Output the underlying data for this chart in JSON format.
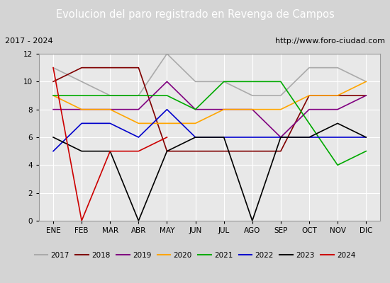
{
  "title": "Evolucion del paro registrado en Revenga de Campos",
  "subtitle_left": "2017 - 2024",
  "subtitle_right": "http://www.foro-ciudad.com",
  "months": [
    "ENE",
    "FEB",
    "MAR",
    "ABR",
    "MAY",
    "JUN",
    "JUL",
    "AGO",
    "SEP",
    "OCT",
    "NOV",
    "DIC"
  ],
  "series": {
    "2017": {
      "color": "#aaaaaa",
      "values": [
        11,
        10,
        9,
        9,
        12,
        10,
        10,
        9,
        9,
        11,
        11,
        10
      ]
    },
    "2018": {
      "color": "#800000",
      "values": [
        10,
        11,
        11,
        11,
        5,
        5,
        5,
        5,
        5,
        9,
        9,
        9
      ]
    },
    "2019": {
      "color": "#800080",
      "values": [
        8,
        8,
        8,
        8,
        10,
        8,
        8,
        8,
        6,
        8,
        8,
        9
      ]
    },
    "2020": {
      "color": "#ffa500",
      "values": [
        9,
        8,
        8,
        7,
        7,
        7,
        8,
        8,
        8,
        9,
        9,
        10
      ]
    },
    "2021": {
      "color": "#00aa00",
      "values": [
        9,
        9,
        9,
        9,
        9,
        8,
        10,
        10,
        10,
        7,
        4,
        5
      ]
    },
    "2022": {
      "color": "#0000cc",
      "values": [
        5,
        7,
        7,
        6,
        8,
        6,
        6,
        6,
        6,
        6,
        6,
        6
      ]
    },
    "2023": {
      "color": "#000000",
      "values": [
        6,
        5,
        5,
        0,
        5,
        6,
        6,
        0,
        6,
        6,
        7,
        6
      ]
    },
    "2024": {
      "color": "#cc0000",
      "values": [
        11,
        0,
        5,
        5,
        6,
        null,
        null,
        null,
        null,
        null,
        null,
        null
      ]
    }
  },
  "ylim": [
    0,
    12
  ],
  "yticks": [
    0,
    2,
    4,
    6,
    8,
    10,
    12
  ],
  "bg_color": "#d4d4d4",
  "plot_bg_color": "#e8e8e8",
  "title_bg_color": "#4472c4",
  "title_font_color": "#ffffff",
  "subtitle_bg_color": "#d4d4d4",
  "legend_bg_color": "#ffffff"
}
